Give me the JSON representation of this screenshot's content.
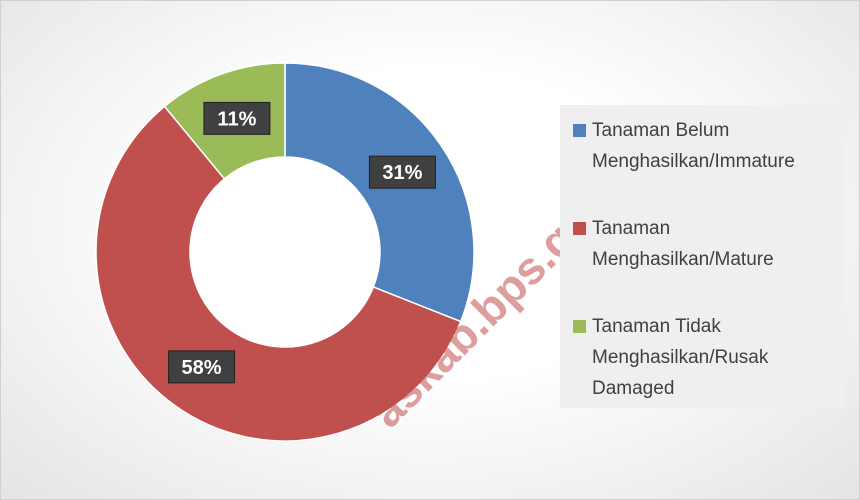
{
  "chart_data": {
    "type": "donut",
    "categories": [
      "Tanaman Belum Menghasilkan/Immature",
      "Tanaman Menghasilkan/Mature",
      "Tanaman Tidak Menghasilkan/Rusak Damaged"
    ],
    "values": [
      31,
      58,
      11
    ],
    "value_labels": [
      "31%",
      "58%",
      "11%"
    ],
    "colors": [
      "#4f81bd",
      "#c0504d",
      "#9bbb59"
    ],
    "legend": "right",
    "watermark": "askab.bps.go.id"
  }
}
